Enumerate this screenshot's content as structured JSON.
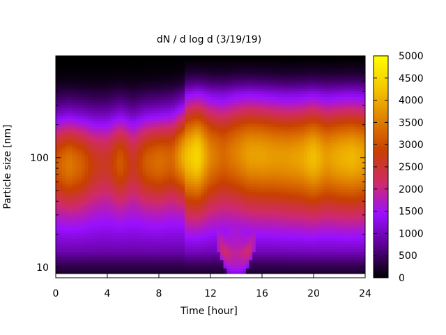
{
  "chart_data": {
    "type": "heatmap",
    "title": "dN / d log d (3/19/19)",
    "xlabel": "Time [hour]",
    "ylabel": "Particle size [nm]",
    "x_ticks": [
      0,
      4,
      8,
      12,
      16,
      20,
      24
    ],
    "xlim": [
      0,
      24
    ],
    "y_scale": "log",
    "ylim": [
      8,
      850
    ],
    "y_ticks": [
      10,
      100
    ],
    "colorbar": {
      "range": [
        0,
        5000
      ],
      "ticks": [
        0,
        500,
        1000,
        1500,
        2000,
        2500,
        3000,
        3500,
        4000,
        4500,
        5000
      ],
      "palette": [
        "#000000",
        "#5a0090",
        "#9a10ff",
        "#d02a6a",
        "#c84000",
        "#e08000",
        "#f5c800",
        "#ffff00"
      ]
    },
    "grid": false,
    "legend": "colorbar-right",
    "features": {
      "mode_diameter_nm": [
        {
          "t": 0,
          "d": 95
        },
        {
          "t": 2,
          "d": 95
        },
        {
          "t": 4,
          "d": 100
        },
        {
          "t": 6,
          "d": 100
        },
        {
          "t": 8,
          "d": 100
        },
        {
          "t": 10,
          "d": 110
        },
        {
          "t": 12,
          "d": 115
        },
        {
          "t": 14,
          "d": 120
        },
        {
          "t": 16,
          "d": 115
        },
        {
          "t": 18,
          "d": 110
        },
        {
          "t": 20,
          "d": 110
        },
        {
          "t": 22,
          "d": 110
        },
        {
          "t": 24,
          "d": 110
        }
      ],
      "peak_intensity": [
        {
          "t": 0,
          "v": 2800
        },
        {
          "t": 1,
          "v": 3200
        },
        {
          "t": 2,
          "v": 2900
        },
        {
          "t": 3,
          "v": 2400
        },
        {
          "t": 4,
          "v": 2300
        },
        {
          "t": 5,
          "v": 2900
        },
        {
          "t": 6,
          "v": 2300
        },
        {
          "t": 7,
          "v": 2900
        },
        {
          "t": 8,
          "v": 3100
        },
        {
          "t": 9,
          "v": 3000
        },
        {
          "t": 10,
          "v": 3900
        },
        {
          "t": 11,
          "v": 4300
        },
        {
          "t": 12,
          "v": 3400
        },
        {
          "t": 13,
          "v": 3100
        },
        {
          "t": 14,
          "v": 3400
        },
        {
          "t": 15,
          "v": 3700
        },
        {
          "t": 16,
          "v": 3700
        },
        {
          "t": 17,
          "v": 3600
        },
        {
          "t": 18,
          "v": 3600
        },
        {
          "t": 19,
          "v": 3700
        },
        {
          "t": 20,
          "v": 4000
        },
        {
          "t": 21,
          "v": 3600
        },
        {
          "t": 22,
          "v": 3800
        },
        {
          "t": 23,
          "v": 3900
        },
        {
          "t": 24,
          "v": 3700
        }
      ],
      "growth_event": {
        "start_hour": 11.5,
        "end_hour": 16.5,
        "min_diameter_nm": 9
      }
    }
  }
}
